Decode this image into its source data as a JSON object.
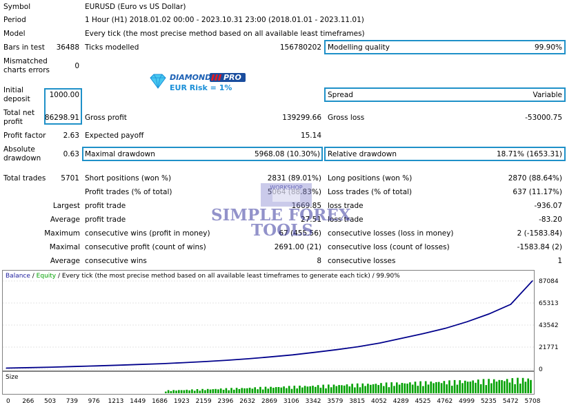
{
  "report": {
    "symbol_label": "Symbol",
    "symbol_value": "EURUSD (Euro vs US Dollar)",
    "period_label": "Period",
    "period_value": "1 Hour (H1) 2018.01.02 00:00 - 2023.10.31 23:00 (2018.01.01 - 2023.11.01)",
    "model_label": "Model",
    "model_value": "Every tick (the most precise method based on all available least timeframes)",
    "bars_label": "Bars in test",
    "bars_value": "36488",
    "ticks_label": "Ticks modelled",
    "ticks_value": "156780202",
    "quality_label": "Modelling quality",
    "quality_value": "99.90%",
    "mismatch_label_1": "Mismatched",
    "mismatch_label_2": "charts errors",
    "mismatch_value": "0",
    "initial_label_1": "Initial",
    "initial_label_2": "deposit",
    "initial_value": "1000.00",
    "spread_label": "Spread",
    "spread_value": "Variable",
    "netprofit_label_1": "Total net",
    "netprofit_label_2": "profit",
    "netprofit_value": "86298.91",
    "gross_profit_label": "Gross profit",
    "gross_profit_value": "139299.66",
    "gross_loss_label": "Gross loss",
    "gross_loss_value": "-53000.75",
    "profit_factor_label": "Profit factor",
    "profit_factor_value": "2.63",
    "expected_payoff_label": "Expected payoff",
    "expected_payoff_value": "15.14",
    "abs_dd_label_1": "Absolute",
    "abs_dd_label_2": "drawdown",
    "abs_dd_value": "0.63",
    "max_dd_label": "Maximal drawdown",
    "max_dd_value": "5968.08 (10.30%)",
    "rel_dd_label": "Relative drawdown",
    "rel_dd_value": "18.71% (1653.31)",
    "total_trades_label": "Total trades",
    "total_trades_value": "5701",
    "short_label": "Short positions (won %)",
    "short_value": "2831 (89.01%)",
    "long_label": "Long positions (won %)",
    "long_value": "2870 (88.64%)",
    "profit_trades_label": "Profit trades (% of total)",
    "profit_trades_value": "5064 (88.83%)",
    "loss_trades_label": "Loss trades (% of total)",
    "loss_trades_value": "637 (11.17%)",
    "largest_label": "Largest",
    "largest_profit_label": "profit trade",
    "largest_profit_value": "1669.85",
    "largest_loss_label": "loss trade",
    "largest_loss_value": "-936.07",
    "average_label": "Average",
    "average_profit_label": "profit trade",
    "average_profit_value": "27.51",
    "average_loss_label": "loss trade",
    "average_loss_value": "-83.20",
    "maximum_label": "Maximum",
    "max_cons_wins_label": "consecutive wins (profit in money)",
    "max_cons_wins_value": "67 (455.56)",
    "max_cons_losses_label": "consecutive losses (loss in money)",
    "max_cons_losses_value": "2 (-1583.84)",
    "maximal_label": "Maximal",
    "maximal_cons_profit_label": "consecutive profit (count of wins)",
    "maximal_cons_profit_value": "2691.00 (21)",
    "maximal_cons_loss_label": "consecutive loss (count of losses)",
    "maximal_cons_loss_value": "-1583.84 (2)",
    "avg_label": "Average",
    "avg_cons_wins_label": "consecutive wins",
    "avg_cons_wins_value": "8",
    "avg_cons_losses_label": "consecutive losses",
    "avg_cons_losses_value": "1"
  },
  "logo": {
    "brand": "DIAMOND",
    "badge": "PRO",
    "subtitle": "EUR Risk = 1%",
    "icon": "diamond-icon",
    "colors": {
      "brand": "#1a5fb4",
      "badge_bg": "#1a4d9e",
      "badge_accent": "#e01b24",
      "subtitle": "#1a8fd8",
      "diamond": "#48c8f0"
    }
  },
  "watermark": {
    "line1": "SIMPLE FOREX",
    "line2": "TOOLS",
    "emblem_text": "WORKSHOP",
    "color": "#3a3aa0"
  },
  "chart_data": {
    "type": "line",
    "header": {
      "balance": "Balance",
      "sep1": " / ",
      "equity": "Equity",
      "rest": " / Every tick (the most precise method based on all available least timeframes to generate each tick) / 99.90%"
    },
    "x_ticks": [
      "0",
      "266",
      "503",
      "739",
      "976",
      "1213",
      "1449",
      "1686",
      "1923",
      "2159",
      "2396",
      "2632",
      "2869",
      "3106",
      "3342",
      "3579",
      "3815",
      "4052",
      "4289",
      "4525",
      "4762",
      "4999",
      "5235",
      "5472",
      "5708"
    ],
    "y_ticks": [
      "87084",
      "65313",
      "43542",
      "21771",
      "0"
    ],
    "xlim": [
      0,
      5708
    ],
    "ylim": [
      0,
      87084
    ],
    "series": [
      {
        "name": "Balance",
        "color": "#00008b",
        "x": [
          0,
          266,
          503,
          739,
          976,
          1213,
          1449,
          1686,
          1923,
          2159,
          2396,
          2632,
          2869,
          3106,
          3342,
          3579,
          3815,
          4052,
          4289,
          4525,
          4762,
          4999,
          5235,
          5472,
          5708
        ],
        "y": [
          1000,
          1500,
          2000,
          2600,
          3200,
          3900,
          4600,
          5400,
          6400,
          7500,
          8800,
          10300,
          12100,
          14100,
          16500,
          19200,
          22100,
          25800,
          30400,
          35100,
          40300,
          46800,
          54500,
          64000,
          87299
        ]
      }
    ],
    "size_panel": {
      "label": "Size",
      "color": "#00a000",
      "max_value": 1.0
    },
    "colors": {
      "balance": "#1a1a9c",
      "equity": "#00a000",
      "grid": "#c8c8c8"
    }
  }
}
